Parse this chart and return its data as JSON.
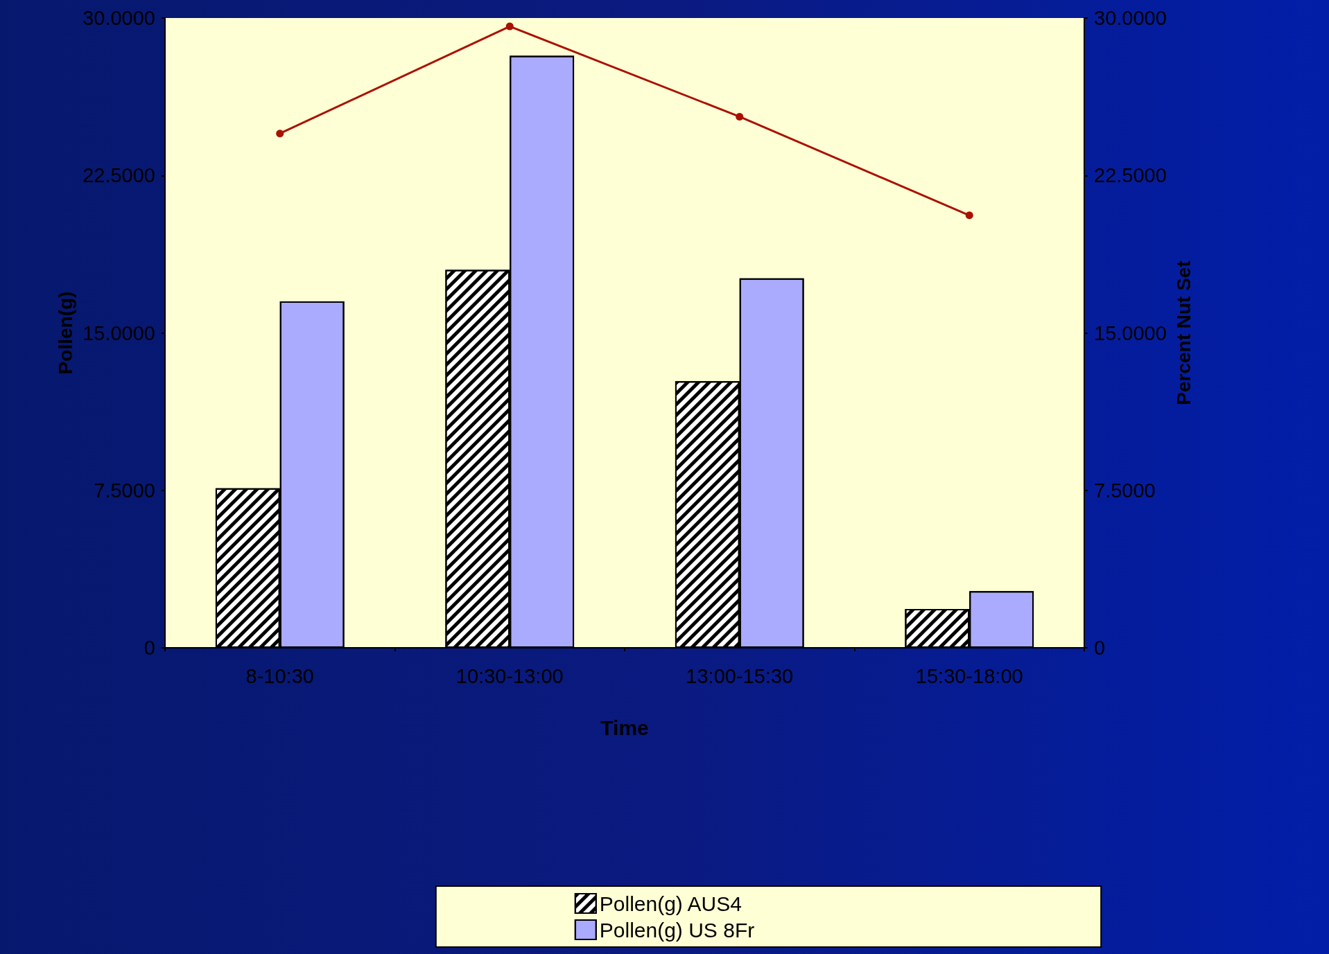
{
  "chart_data": {
    "type": "bar",
    "xlabel": "Time",
    "ylabel": "Pollen(g)",
    "y2label": "Percent Nut Set",
    "categories": [
      "8-10:30",
      "10:30-13:00",
      "13:00-15:30",
      "15:30-18:00"
    ],
    "series": [
      {
        "name": "Pollen(g) AUS4",
        "color": "#ffffff",
        "values": [
          7.6,
          18.0,
          12.7,
          1.85
        ]
      },
      {
        "name": "Pollen(g) US 8Fr",
        "color": "#aaaaff",
        "values": [
          16.5,
          28.2,
          17.6,
          2.7
        ]
      },
      {
        "type": "line",
        "color": "#aa1100",
        "marker": "circle",
        "values": [
          24.5,
          29.6,
          25.3,
          20.6
        ]
      }
    ],
    "ylim": [
      0,
      30
    ],
    "yticks": [
      0,
      {
        "value": 7.5,
        "label": "7.5000"
      },
      {
        "value": 15,
        "label": "15.0000"
      },
      {
        "value": 22.5,
        "label": "22.5000"
      },
      {
        "value": 30,
        "label": "30.0000"
      }
    ],
    "y2lim": [
      0,
      30
    ],
    "y2ticks": [
      0,
      {
        "value": 7.5,
        "label": "7.5000"
      },
      {
        "value": 15,
        "label": "15.0000"
      },
      {
        "value": 22.5,
        "label": "22.5000"
      },
      {
        "value": 30,
        "label": "30.0000"
      }
    ],
    "grid": false,
    "legend": "bottom"
  }
}
